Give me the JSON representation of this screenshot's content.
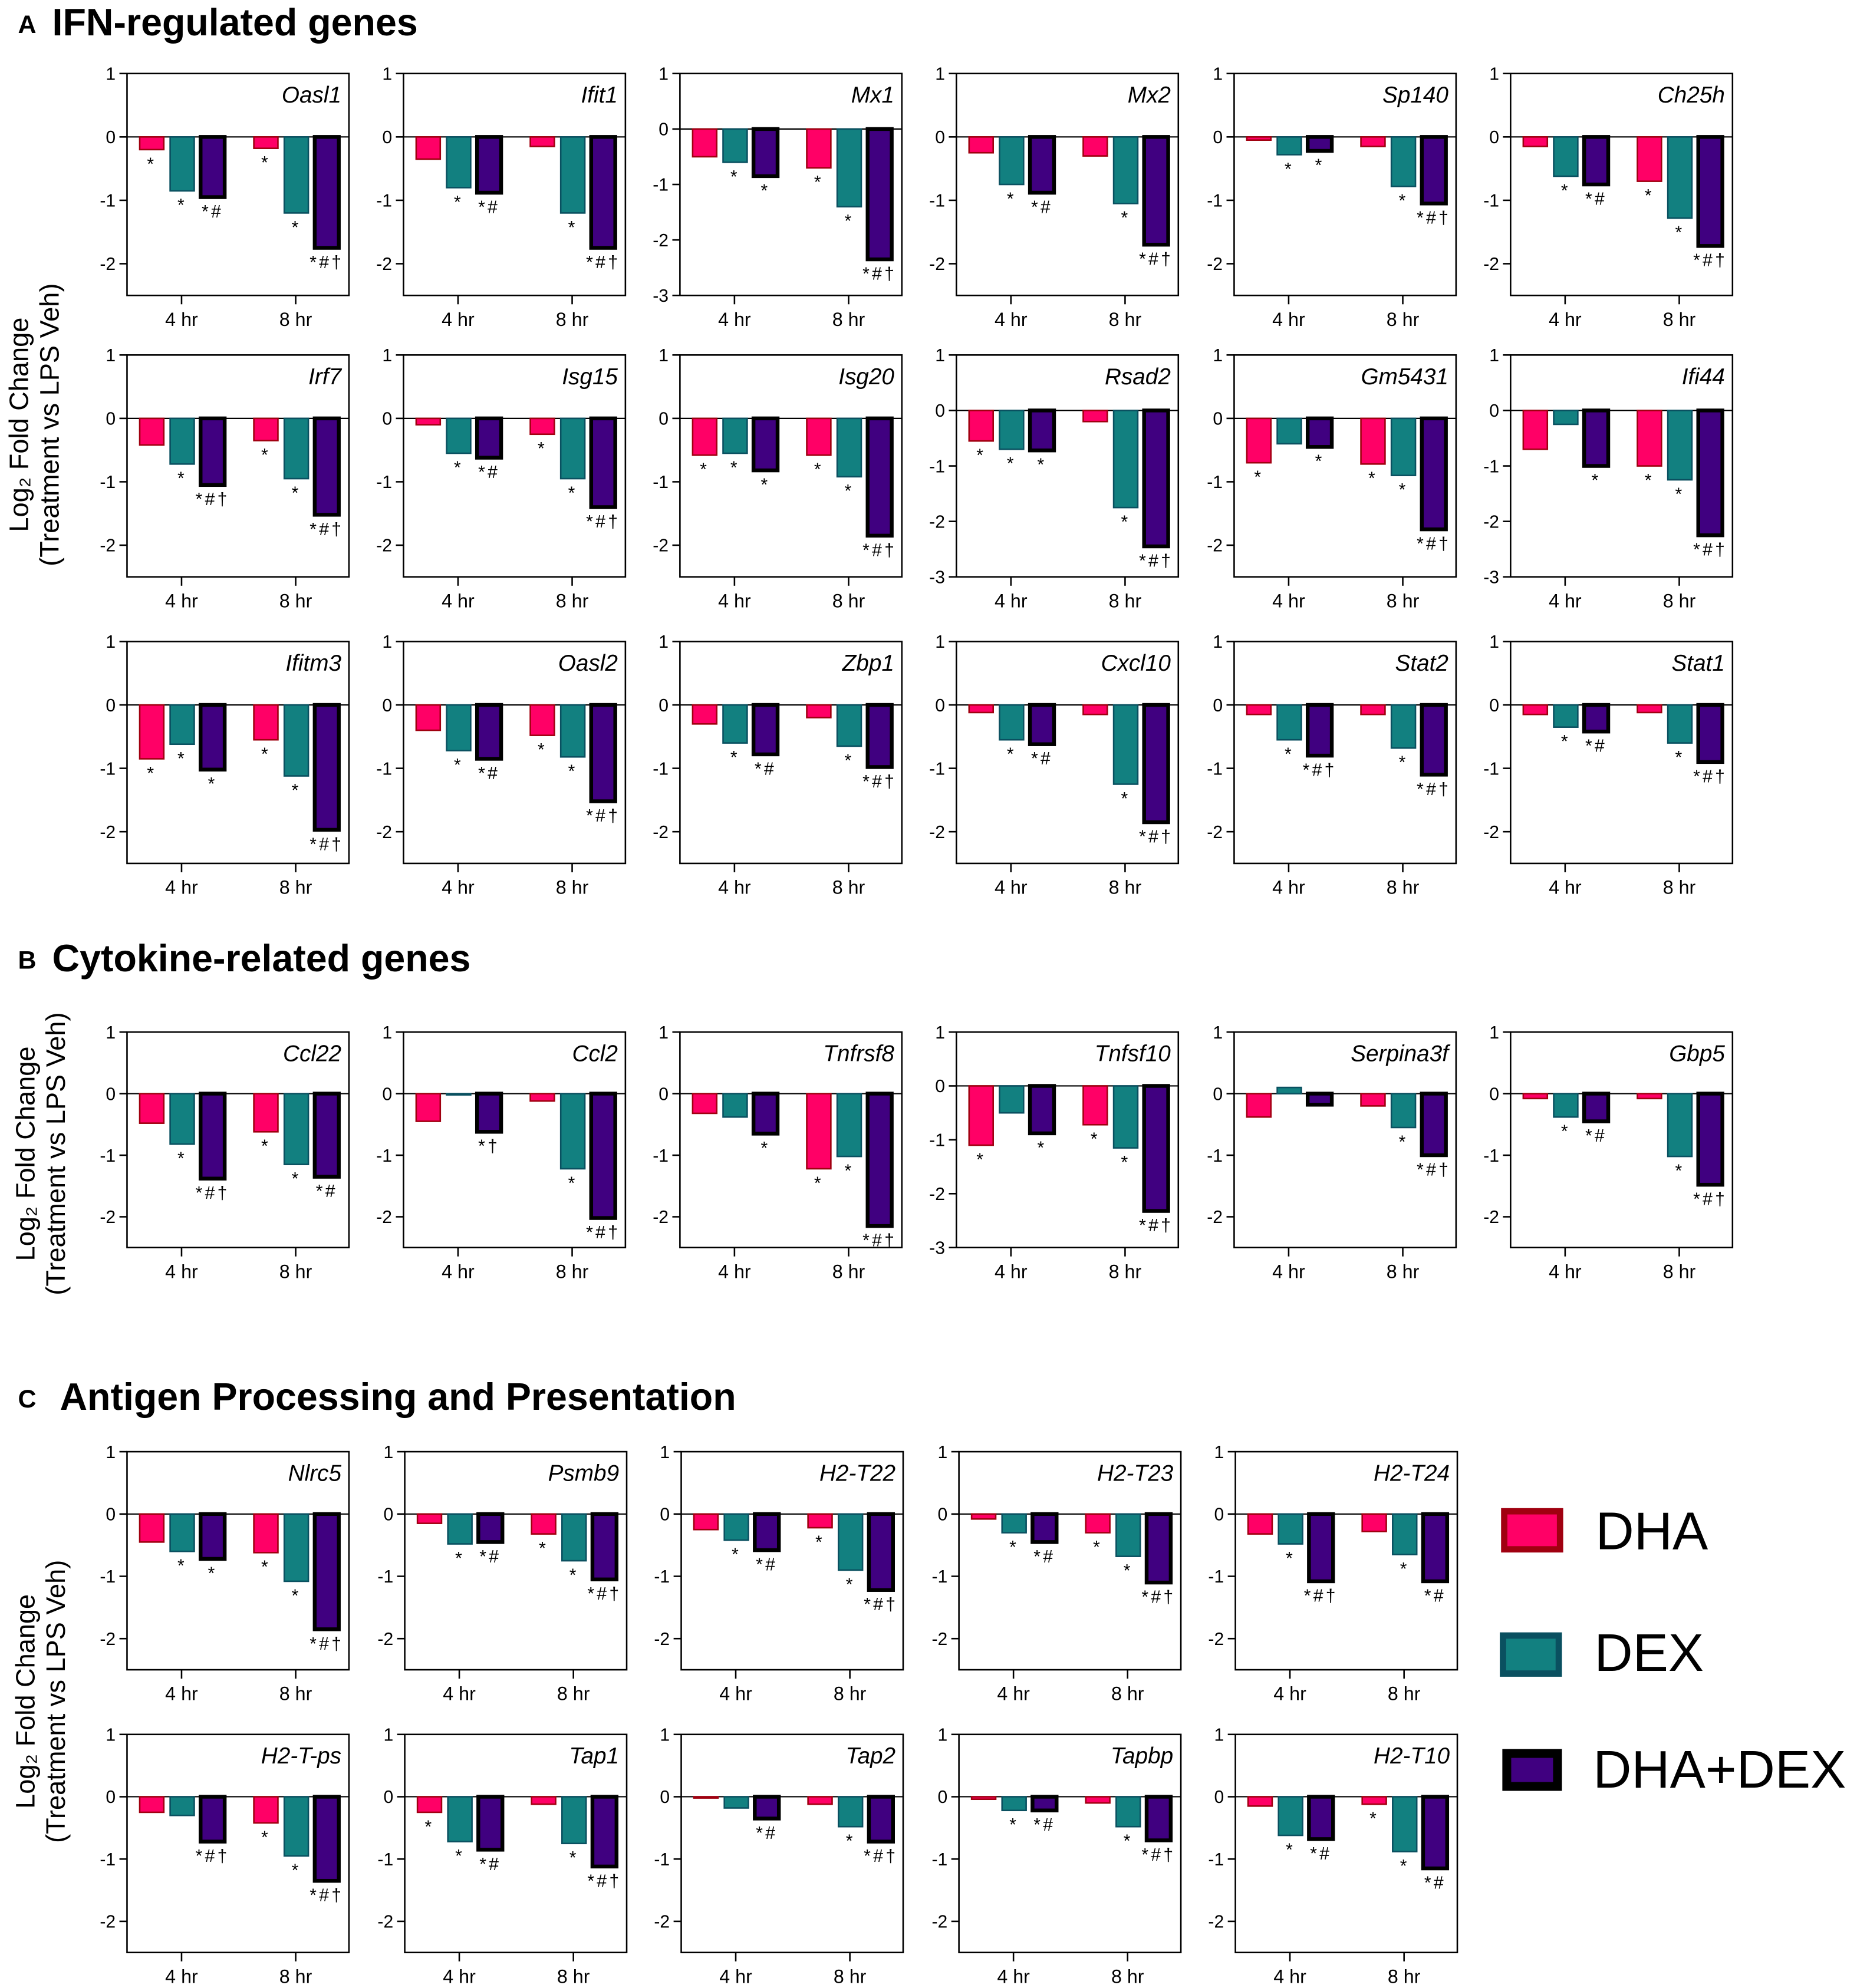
{
  "sections": [
    {
      "letter": "A",
      "title": "IFN-regulated genes"
    },
    {
      "letter": "B",
      "title": "Cytokine-related genes"
    },
    {
      "letter": "C",
      "title": "Antigen Processing and Presentation"
    }
  ],
  "ylabel": {
    "line1": "Log₂ Fold Change",
    "line2": "(Treatment vs LPS Veh)"
  },
  "legend": [
    {
      "label": "DHA",
      "fill": "#ff0066",
      "stroke": "#a00010"
    },
    {
      "label": "DEX",
      "fill": "#128080",
      "stroke": "#0a5060"
    },
    {
      "label": "DHA+DEX",
      "fill": "#400080",
      "stroke": "#000000"
    }
  ],
  "chart_data": {
    "type": "bar",
    "series": [
      "DHA",
      "DEX",
      "DHA+DEX"
    ],
    "categories": [
      "4 hr",
      "8 hr"
    ],
    "ylabel": "Log2 Fold Change (Treatment vs LPS Veh)",
    "panels": [
      {
        "section": "A",
        "gene": "Oasl1",
        "ylim": [
          -2.5,
          1
        ],
        "values": [
          [
            -0.2,
            -0.85,
            -0.95
          ],
          [
            -0.18,
            -1.2,
            -1.75
          ]
        ],
        "ann": [
          [
            "*",
            "*",
            "*#"
          ],
          [
            "*",
            "*",
            "*#†"
          ]
        ]
      },
      {
        "section": "A",
        "gene": "Ifit1",
        "ylim": [
          -2.5,
          1
        ],
        "values": [
          [
            -0.35,
            -0.8,
            -0.88
          ],
          [
            -0.15,
            -1.2,
            -1.75
          ]
        ],
        "ann": [
          [
            "",
            "*",
            "*#"
          ],
          [
            "",
            "*",
            "*#†"
          ]
        ]
      },
      {
        "section": "A",
        "gene": "Mx1",
        "ylim": [
          -3,
          1
        ],
        "values": [
          [
            -0.5,
            -0.6,
            -0.85
          ],
          [
            -0.7,
            -1.4,
            -2.35
          ]
        ],
        "ann": [
          [
            "",
            "*",
            "*"
          ],
          [
            "*",
            "*",
            "*#†"
          ]
        ]
      },
      {
        "section": "A",
        "gene": "Mx2",
        "ylim": [
          -2.5,
          1
        ],
        "values": [
          [
            -0.25,
            -0.75,
            -0.88
          ],
          [
            -0.3,
            -1.05,
            -1.7
          ]
        ],
        "ann": [
          [
            "",
            "*",
            "*#"
          ],
          [
            "",
            "*",
            "*#†"
          ]
        ]
      },
      {
        "section": "A",
        "gene": "Sp140",
        "ylim": [
          -2.5,
          1
        ],
        "values": [
          [
            -0.05,
            -0.28,
            -0.22
          ],
          [
            -0.15,
            -0.78,
            -1.05
          ]
        ],
        "ann": [
          [
            "",
            "*",
            "*"
          ],
          [
            "",
            "*",
            "*#†"
          ]
        ]
      },
      {
        "section": "A",
        "gene": "Ch25h",
        "ylim": [
          -2.5,
          1
        ],
        "values": [
          [
            -0.15,
            -0.62,
            -0.75
          ],
          [
            -0.7,
            -1.28,
            -1.72
          ]
        ],
        "ann": [
          [
            "",
            "*",
            "*#"
          ],
          [
            "*",
            "*",
            "*#†"
          ]
        ]
      },
      {
        "section": "A",
        "gene": "Irf7",
        "ylim": [
          -2.5,
          1
        ],
        "values": [
          [
            -0.42,
            -0.72,
            -1.05
          ],
          [
            -0.35,
            -0.95,
            -1.52
          ]
        ],
        "ann": [
          [
            "",
            "*",
            "*#†"
          ],
          [
            "*",
            "*",
            "*#†"
          ]
        ]
      },
      {
        "section": "A",
        "gene": "Isg15",
        "ylim": [
          -2.5,
          1
        ],
        "values": [
          [
            -0.1,
            -0.55,
            -0.62
          ],
          [
            -0.25,
            -0.95,
            -1.4
          ]
        ],
        "ann": [
          [
            "",
            "*",
            "*#"
          ],
          [
            "*",
            "*",
            "*#†"
          ]
        ]
      },
      {
        "section": "A",
        "gene": "Isg20",
        "ylim": [
          -2.5,
          1
        ],
        "values": [
          [
            -0.58,
            -0.55,
            -0.82
          ],
          [
            -0.58,
            -0.92,
            -1.85
          ]
        ],
        "ann": [
          [
            "*",
            "*",
            "*"
          ],
          [
            "*",
            "*",
            "*#†"
          ]
        ]
      },
      {
        "section": "A",
        "gene": "Rsad2",
        "ylim": [
          -3,
          1
        ],
        "values": [
          [
            -0.55,
            -0.7,
            -0.72
          ],
          [
            -0.2,
            -1.75,
            -2.45
          ]
        ],
        "ann": [
          [
            "*",
            "*",
            "*"
          ],
          [
            "",
            "*",
            "*#†"
          ]
        ]
      },
      {
        "section": "A",
        "gene": "Gm5431",
        "ylim": [
          -2.5,
          1
        ],
        "values": [
          [
            -0.7,
            -0.4,
            -0.45
          ],
          [
            -0.72,
            -0.9,
            -1.75
          ]
        ],
        "ann": [
          [
            "*",
            "",
            "*"
          ],
          [
            "*",
            "*",
            "*#†"
          ]
        ]
      },
      {
        "section": "A",
        "gene": "Ifi44",
        "ylim": [
          -3,
          1
        ],
        "values": [
          [
            -0.7,
            -0.25,
            -1.0
          ],
          [
            -1.0,
            -1.25,
            -2.25
          ]
        ],
        "ann": [
          [
            "",
            "",
            "*"
          ],
          [
            "*",
            "*",
            "*#†"
          ]
        ]
      },
      {
        "section": "A",
        "gene": "Ifitm3",
        "ylim": [
          -2.5,
          1
        ],
        "values": [
          [
            -0.85,
            -0.62,
            -1.02
          ],
          [
            -0.55,
            -1.12,
            -1.97
          ]
        ],
        "ann": [
          [
            "*",
            "*",
            "*"
          ],
          [
            "*",
            "*",
            "*#†"
          ]
        ]
      },
      {
        "section": "A",
        "gene": "Oasl2",
        "ylim": [
          -2.5,
          1
        ],
        "values": [
          [
            -0.4,
            -0.72,
            -0.85
          ],
          [
            -0.48,
            -0.82,
            -1.52
          ]
        ],
        "ann": [
          [
            "",
            "*",
            "*#"
          ],
          [
            "*",
            "*",
            "*#†"
          ]
        ]
      },
      {
        "section": "A",
        "gene": "Zbp1",
        "ylim": [
          -2.5,
          1
        ],
        "values": [
          [
            -0.3,
            -0.6,
            -0.78
          ],
          [
            -0.2,
            -0.65,
            -0.98
          ]
        ],
        "ann": [
          [
            "",
            "*",
            "*#"
          ],
          [
            "",
            "*",
            "*#†"
          ]
        ]
      },
      {
        "section": "A",
        "gene": "Cxcl10",
        "ylim": [
          -2.5,
          1
        ],
        "values": [
          [
            -0.12,
            -0.55,
            -0.62
          ],
          [
            -0.15,
            -1.25,
            -1.85
          ]
        ],
        "ann": [
          [
            "",
            "*",
            "*#"
          ],
          [
            "",
            "*",
            "*#†"
          ]
        ]
      },
      {
        "section": "A",
        "gene": "Stat2",
        "ylim": [
          -2.5,
          1
        ],
        "values": [
          [
            -0.15,
            -0.55,
            -0.8
          ],
          [
            -0.15,
            -0.68,
            -1.1
          ]
        ],
        "ann": [
          [
            "",
            "*",
            "*#†"
          ],
          [
            "",
            "*",
            "*#†"
          ]
        ]
      },
      {
        "section": "A",
        "gene": "Stat1",
        "ylim": [
          -2.5,
          1
        ],
        "values": [
          [
            -0.15,
            -0.35,
            -0.42
          ],
          [
            -0.12,
            -0.6,
            -0.9
          ]
        ],
        "ann": [
          [
            "",
            "*",
            "*#"
          ],
          [
            "",
            "*",
            "*#†"
          ]
        ]
      },
      {
        "section": "B",
        "gene": "Ccl22",
        "ylim": [
          -2.5,
          1
        ],
        "values": [
          [
            -0.48,
            -0.82,
            -1.38
          ],
          [
            -0.62,
            -1.15,
            -1.35
          ]
        ],
        "ann": [
          [
            "",
            "*",
            "*#†"
          ],
          [
            "*",
            "*",
            "*#"
          ]
        ]
      },
      {
        "section": "B",
        "gene": "Ccl2",
        "ylim": [
          -2.5,
          1
        ],
        "values": [
          [
            -0.45,
            -0.02,
            -0.62
          ],
          [
            -0.12,
            -1.22,
            -2.02
          ]
        ],
        "ann": [
          [
            "",
            "",
            "*†"
          ],
          [
            "",
            "*",
            "*#†"
          ]
        ]
      },
      {
        "section": "B",
        "gene": "Tnfrsf8",
        "ylim": [
          -2.5,
          1
        ],
        "values": [
          [
            -0.32,
            -0.38,
            -0.65
          ],
          [
            -1.22,
            -1.02,
            -2.15
          ]
        ],
        "ann": [
          [
            "",
            "",
            "*"
          ],
          [
            "*",
            "*",
            "*#†"
          ]
        ]
      },
      {
        "section": "B",
        "gene": "Tnfsf10",
        "ylim": [
          -3,
          1
        ],
        "values": [
          [
            -1.1,
            -0.5,
            -0.88
          ],
          [
            -0.72,
            -1.15,
            -2.32
          ]
        ],
        "ann": [
          [
            "*",
            "",
            "*"
          ],
          [
            "*",
            "*",
            "*#†"
          ]
        ]
      },
      {
        "section": "B",
        "gene": "Serpina3f",
        "ylim": [
          -2.5,
          1
        ],
        "values": [
          [
            -0.38,
            0.1,
            -0.18
          ],
          [
            -0.2,
            -0.55,
            -1.0
          ]
        ],
        "ann": [
          [
            "",
            "",
            ""
          ],
          [
            "",
            "*",
            "*#†"
          ]
        ]
      },
      {
        "section": "B",
        "gene": "Gbp5",
        "ylim": [
          -2.5,
          1
        ],
        "values": [
          [
            -0.08,
            -0.38,
            -0.45
          ],
          [
            -0.08,
            -1.02,
            -1.48
          ]
        ],
        "ann": [
          [
            "",
            "*",
            "*#"
          ],
          [
            "",
            "*",
            "*#†"
          ]
        ]
      },
      {
        "section": "C",
        "gene": "Nlrc5",
        "ylim": [
          -2.5,
          1
        ],
        "values": [
          [
            -0.45,
            -0.6,
            -0.72
          ],
          [
            -0.62,
            -1.08,
            -1.85
          ]
        ],
        "ann": [
          [
            "",
            "*",
            "*"
          ],
          [
            "*",
            "*",
            "*#†"
          ]
        ]
      },
      {
        "section": "C",
        "gene": "Psmb9",
        "ylim": [
          -2.5,
          1
        ],
        "values": [
          [
            -0.15,
            -0.48,
            -0.45
          ],
          [
            -0.32,
            -0.75,
            -1.05
          ]
        ],
        "ann": [
          [
            "",
            "*",
            "*#"
          ],
          [
            "*",
            "*",
            "*#†"
          ]
        ]
      },
      {
        "section": "C",
        "gene": "H2-T22",
        "ylim": [
          -2.5,
          1
        ],
        "values": [
          [
            -0.25,
            -0.42,
            -0.58
          ],
          [
            -0.22,
            -0.9,
            -1.22
          ]
        ],
        "ann": [
          [
            "",
            "*",
            "*#"
          ],
          [
            "*",
            "*",
            "*#†"
          ]
        ]
      },
      {
        "section": "C",
        "gene": "H2-T23",
        "ylim": [
          -2.5,
          1
        ],
        "values": [
          [
            -0.08,
            -0.3,
            -0.45
          ],
          [
            -0.3,
            -0.68,
            -1.1
          ]
        ],
        "ann": [
          [
            "",
            "*",
            "*#"
          ],
          [
            "*",
            "*",
            "*#†"
          ]
        ]
      },
      {
        "section": "C",
        "gene": "H2-T24",
        "ylim": [
          -2.5,
          1
        ],
        "values": [
          [
            -0.32,
            -0.48,
            -1.08
          ],
          [
            -0.28,
            -0.65,
            -1.08
          ]
        ],
        "ann": [
          [
            "",
            "*",
            "*#†"
          ],
          [
            "",
            "*",
            "*#"
          ]
        ]
      },
      {
        "section": "C",
        "gene": "H2-T-ps",
        "ylim": [
          -2.5,
          1
        ],
        "values": [
          [
            -0.25,
            -0.3,
            -0.72
          ],
          [
            -0.42,
            -0.95,
            -1.35
          ]
        ],
        "ann": [
          [
            "",
            "",
            "*#†"
          ],
          [
            "*",
            "*",
            "*#†"
          ]
        ]
      },
      {
        "section": "C",
        "gene": "Tap1",
        "ylim": [
          -2.5,
          1
        ],
        "values": [
          [
            -0.25,
            -0.72,
            -0.85
          ],
          [
            -0.12,
            -0.75,
            -1.12
          ]
        ],
        "ann": [
          [
            "*",
            "*",
            "*#"
          ],
          [
            "",
            "*",
            "*#†"
          ]
        ]
      },
      {
        "section": "C",
        "gene": "Tap2",
        "ylim": [
          -2.5,
          1
        ],
        "values": [
          [
            -0.02,
            -0.18,
            -0.35
          ],
          [
            -0.12,
            -0.48,
            -0.72
          ]
        ],
        "ann": [
          [
            "",
            "",
            "*#"
          ],
          [
            "",
            "*",
            "*#†"
          ]
        ]
      },
      {
        "section": "C",
        "gene": "Tapbp",
        "ylim": [
          -2.5,
          1
        ],
        "values": [
          [
            -0.04,
            -0.22,
            -0.22
          ],
          [
            -0.1,
            -0.48,
            -0.7
          ]
        ],
        "ann": [
          [
            "",
            "*",
            "*#"
          ],
          [
            "",
            "*",
            "*#†"
          ]
        ]
      },
      {
        "section": "C",
        "gene": "H2-T10",
        "ylim": [
          -2.5,
          1
        ],
        "values": [
          [
            -0.15,
            -0.62,
            -0.68
          ],
          [
            -0.12,
            -0.88,
            -1.15
          ]
        ],
        "ann": [
          [
            "",
            "*",
            "*#"
          ],
          [
            "*",
            "*",
            "*#"
          ]
        ]
      }
    ]
  }
}
